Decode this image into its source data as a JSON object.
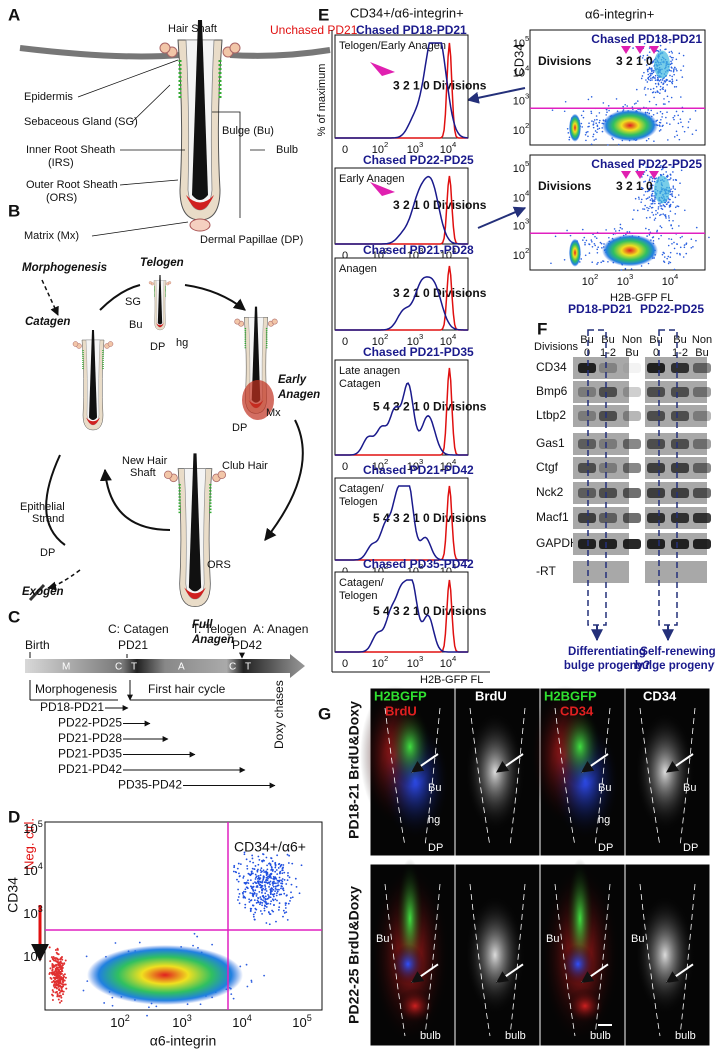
{
  "A": {
    "label": "A",
    "hair_shaft": "Hair Shaft",
    "epidermis": "Epidermis",
    "sg": "Sebaceous Gland (SG)",
    "bulge": "Bulge (Bu)",
    "irs": [
      "Inner Root Sheath",
      "(IRS)"
    ],
    "ors": [
      "Outer Root Sheath",
      "(ORS)"
    ],
    "bulb": "Bulb",
    "matrix": "Matrix (Mx)",
    "dp": "Dermal Papillae (DP)"
  },
  "B": {
    "label": "B",
    "morphogenesis": "Morphogenesis",
    "telogen": "Telogen",
    "catagen": "Catagen",
    "sg": "SG",
    "bu": "Bu",
    "hg": "hg",
    "dp": "DP",
    "early_anagen": [
      "Early",
      "Anagen"
    ],
    "mx": "Mx",
    "new_hair_shaft": [
      "New Hair",
      "Shaft"
    ],
    "club_hair": "Club Hair",
    "epithelial_strand": [
      "Epithelial",
      "Strand"
    ],
    "exogen": "Exogen",
    "ors": "ORS",
    "full_anagen": [
      "Full",
      "Anagen"
    ]
  },
  "C": {
    "label": "C",
    "legend": [
      "C: Catagen",
      "T: Telogen",
      "A: Anagen"
    ],
    "birth": "Birth",
    "markers": [
      "PD21",
      "PD42"
    ],
    "segments": [
      "M",
      "C",
      "T",
      "A",
      "C",
      "T"
    ],
    "phases": [
      "Morphogenesis",
      "First hair cycle"
    ],
    "chases": [
      "PD18-PD21",
      "PD22-PD25",
      "PD21-PD28",
      "PD21-PD35",
      "PD21-PD42",
      "PD35-PD42"
    ],
    "chase_label": "Doxy chases"
  },
  "D": {
    "label": "D",
    "y_label": "CD34",
    "x_label": "α6-integrin",
    "neg_ctrl": "Neg. ctrl.",
    "gate": "CD34+/α6+",
    "tick_base": "10",
    "x_ticks": [
      "2",
      "3",
      "4",
      "5"
    ],
    "y_ticks": [
      "2",
      "3",
      "4",
      "5"
    ]
  },
  "E": {
    "label": "E",
    "title": "CD34+/α6-integrin+",
    "unchased": "Unchased PD21",
    "y_label": "% of maximum",
    "x_label": "H2B-GFP FL",
    "tick_zero": "0",
    "tick_base": "10",
    "x_ticks": [
      "2",
      "3",
      "4"
    ],
    "histograms": [
      {
        "name": "Chased PD18-PD21",
        "stage": [
          "Telogen/Early Anagen"
        ],
        "divisions": "3 2 1 0 Divisions"
      },
      {
        "name": "Chased PD22-PD25",
        "stage": [
          "Early Anagen"
        ],
        "divisions": "3 2 1 0 Divisions"
      },
      {
        "name": "Chased PD21-PD28",
        "stage": [
          "Anagen"
        ],
        "divisions": "3 2 1 0 Divisions"
      },
      {
        "name": "Chased PD21-PD35",
        "stage": [
          "Late anagen",
          "Catagen"
        ],
        "divisions": "5 4 3 2 1 0 Divisions"
      },
      {
        "name": "Chased PD21-PD42",
        "stage": [
          "Catagen/",
          "Telogen"
        ],
        "divisions": "5 4 3 2 1 0 Divisions"
      },
      {
        "name": "Chased PD35-PD42",
        "stage": [
          "Catagen/",
          "Telogen"
        ],
        "divisions": "5 4 3 2 1 0 Divisions"
      }
    ],
    "scatter_title": "α6-integrin+",
    "scatter_y_label": "CD34",
    "scatter_x_label": "H2B-GFP FL",
    "scatter_y_ticks": [
      "2",
      "3",
      "4",
      "5"
    ],
    "scatter_x_ticks": [
      "2",
      "3",
      "4"
    ],
    "scatters": [
      {
        "name": "Chased PD18-PD21",
        "divisions_label": "Divisions",
        "divisions": "3 2 1 0"
      },
      {
        "name": "Chased PD22-PD25",
        "divisions_label": "Divisions",
        "divisions": "3 2 1 0"
      }
    ]
  },
  "F": {
    "label": "F",
    "groups": [
      "PD18-PD21",
      "PD22-PD25"
    ],
    "divisions_label": "Divisions",
    "columns": [
      [
        "Bu",
        "0"
      ],
      [
        "Bu",
        "1-2"
      ],
      [
        "Non",
        "Bu"
      ]
    ],
    "genes": [
      "CD34",
      "Bmp6",
      "Ltbp2",
      "Gas1",
      "Ctgf",
      "Nck2",
      "Macf1",
      "GAPDH",
      "-RT"
    ],
    "notes": [
      [
        "Differentiating",
        "bulge progeny?"
      ],
      [
        "Self-renewing",
        "bulge progeny?"
      ]
    ]
  },
  "G": {
    "label": "G",
    "channels": [
      "H2BGFP",
      "BrdU",
      "CD34"
    ],
    "rows": [
      "PD18-21 BrdU&Doxy",
      "PD22-25 BrdU&Doxy"
    ],
    "regions": [
      "Bu",
      "hg",
      "DP",
      "bulb"
    ]
  }
}
